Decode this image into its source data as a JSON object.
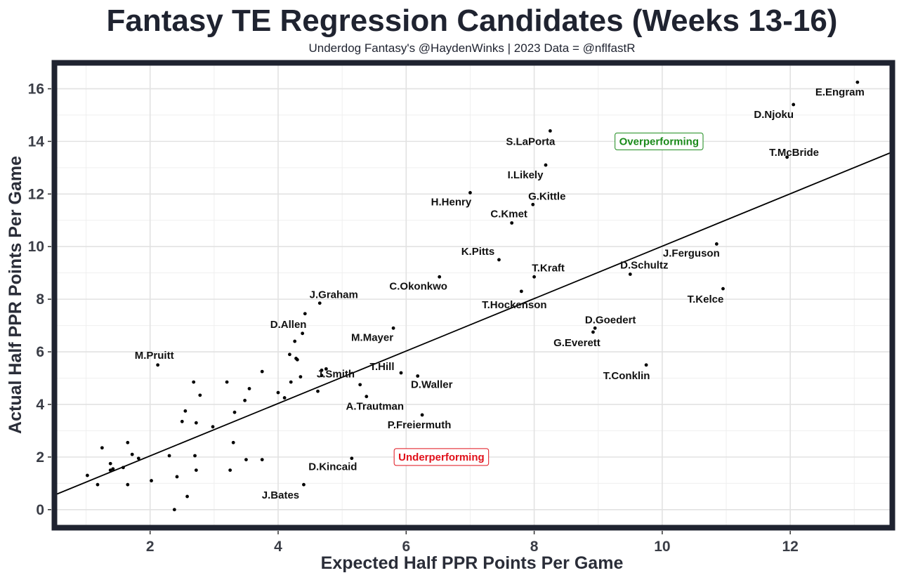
{
  "chart_data": {
    "type": "scatter",
    "title": "Fantasy TE Regression Candidates (Weeks 13-16)",
    "subtitle": "Underdog Fantasy's @HaydenWinks | 2023 Data = @nflfastR",
    "xlabel": "Expected Half PPR Points Per Game",
    "ylabel": "Actual Half PPR Points Per Game",
    "xlim": [
      0.5,
      13.6
    ],
    "ylim": [
      -0.7,
      17.0
    ],
    "x_ticks": [
      2,
      4,
      6,
      8,
      10,
      12
    ],
    "y_ticks": [
      0,
      2,
      4,
      6,
      8,
      10,
      12,
      14,
      16
    ],
    "grid": true,
    "trend_line": {
      "intercept": 0.05,
      "slope": 0.9966
    },
    "annotations": [
      {
        "text": "Overperforming",
        "x": 9.95,
        "y": 14.0,
        "color": "#1a8a1a"
      },
      {
        "text": "Underperforming",
        "x": 6.55,
        "y": 2.0,
        "color": "#e0101a"
      }
    ],
    "labeled_points": [
      {
        "name": "E.Engram",
        "x": 13.05,
        "y": 16.25
      },
      {
        "name": "D.Njoku",
        "x": 12.05,
        "y": 15.4
      },
      {
        "name": "T.McBride",
        "x": 11.95,
        "y": 13.4
      },
      {
        "name": "S.LaPorta",
        "x": 8.25,
        "y": 14.4
      },
      {
        "name": "I.Likely",
        "x": 8.18,
        "y": 13.1
      },
      {
        "name": "H.Henry",
        "x": 7.0,
        "y": 12.05
      },
      {
        "name": "G.Kittle",
        "x": 7.98,
        "y": 11.6
      },
      {
        "name": "C.Kmet",
        "x": 7.65,
        "y": 10.9
      },
      {
        "name": "J.Ferguson",
        "x": 10.85,
        "y": 10.1
      },
      {
        "name": "K.Pitts",
        "x": 7.45,
        "y": 9.5
      },
      {
        "name": "D.Schultz",
        "x": 9.5,
        "y": 8.95
      },
      {
        "name": "T.Kraft",
        "x": 8.0,
        "y": 8.85
      },
      {
        "name": "C.Okonkwo",
        "x": 6.52,
        "y": 8.85
      },
      {
        "name": "T.Kelce",
        "x": 10.95,
        "y": 8.4
      },
      {
        "name": "T.Hockenson",
        "x": 7.8,
        "y": 8.3
      },
      {
        "name": "J.Graham",
        "x": 4.65,
        "y": 7.85
      },
      {
        "name": "D.Goedert",
        "x": 8.95,
        "y": 6.9
      },
      {
        "name": "D.Allen",
        "x": 4.38,
        "y": 6.7
      },
      {
        "name": "G.Everett",
        "x": 8.92,
        "y": 6.75
      },
      {
        "name": "M.Mayer",
        "x": 5.8,
        "y": 6.9
      },
      {
        "name": "M.Pruitt",
        "x": 2.12,
        "y": 5.5
      },
      {
        "name": "T.Conklin",
        "x": 9.75,
        "y": 5.5
      },
      {
        "name": "T.Hill",
        "x": 5.92,
        "y": 5.2
      },
      {
        "name": "J.Smith",
        "x": 4.68,
        "y": 5.1
      },
      {
        "name": "D.Waller",
        "x": 6.18,
        "y": 5.08
      },
      {
        "name": "A.Trautman",
        "x": 5.38,
        "y": 4.3
      },
      {
        "name": "P.Freiermuth",
        "x": 6.25,
        "y": 3.6
      },
      {
        "name": "D.Kincaid",
        "x": 5.15,
        "y": 1.95
      },
      {
        "name": "J.Bates",
        "x": 4.4,
        "y": 0.95
      }
    ],
    "unlabeled_points": [
      [
        1.02,
        1.3
      ],
      [
        1.18,
        0.95
      ],
      [
        1.25,
        2.35
      ],
      [
        1.38,
        1.5
      ],
      [
        1.38,
        1.75
      ],
      [
        1.42,
        1.55
      ],
      [
        1.58,
        1.6
      ],
      [
        1.65,
        2.55
      ],
      [
        1.65,
        0.95
      ],
      [
        1.72,
        2.1
      ],
      [
        1.82,
        1.95
      ],
      [
        2.02,
        1.1
      ],
      [
        2.3,
        2.05
      ],
      [
        2.38,
        0.0
      ],
      [
        2.42,
        1.25
      ],
      [
        2.5,
        3.35
      ],
      [
        2.55,
        3.75
      ],
      [
        2.58,
        0.5
      ],
      [
        2.68,
        4.85
      ],
      [
        2.7,
        2.05
      ],
      [
        2.72,
        3.3
      ],
      [
        2.72,
        1.5
      ],
      [
        2.78,
        4.35
      ],
      [
        2.98,
        3.15
      ],
      [
        3.2,
        4.85
      ],
      [
        3.25,
        1.5
      ],
      [
        3.3,
        2.55
      ],
      [
        3.32,
        3.7
      ],
      [
        3.48,
        4.15
      ],
      [
        3.5,
        1.9
      ],
      [
        3.55,
        4.6
      ],
      [
        3.75,
        1.9
      ],
      [
        3.75,
        5.25
      ],
      [
        4.0,
        4.45
      ],
      [
        4.1,
        4.25
      ],
      [
        4.18,
        5.9
      ],
      [
        4.2,
        4.85
      ],
      [
        4.26,
        6.4
      ],
      [
        4.28,
        5.75
      ],
      [
        4.3,
        5.7
      ],
      [
        4.35,
        5.05
      ],
      [
        4.42,
        7.45
      ],
      [
        4.62,
        4.5
      ],
      [
        4.68,
        5.3
      ],
      [
        4.75,
        5.35
      ],
      [
        5.28,
        4.75
      ]
    ]
  }
}
